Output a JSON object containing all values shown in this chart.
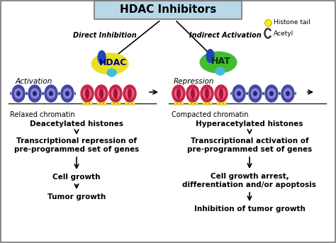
{
  "title": "HDAC Inhibitors",
  "title_box_color": "#b8d8e8",
  "bg_color": "#ffffff",
  "border_color": "#777777",
  "left_label": "Direct Inhibition",
  "right_label": "Indirect Activation",
  "activation_label": "Activation",
  "repression_label": "Repression",
  "relaxed_label": "Relaxed chromatin",
  "compacted_label": "Compacted chromatin",
  "legend_histone": "Histone tail",
  "legend_acetyl": "Acetyl",
  "left_steps": [
    "Deacetylated histones",
    "Transcriptional repression of\npre-programmed set of genes",
    "Cell growth",
    "Tumor growth"
  ],
  "right_steps": [
    "Hyperacetylated histones",
    "Transcriptional activation of\npre-programmed set of genes",
    "Cell growth arrest,\ndifferentiation and/or apoptosis",
    "Inhibition of tumor growth"
  ],
  "hdac_color": "#e8e020",
  "hat_color": "#44bb33",
  "blue_oval_color": "#2244bb",
  "cyan_oval_color": "#44bbdd",
  "purple_nuc_outer": "#4444aa",
  "purple_nuc_inner": "#8888cc",
  "purple_nuc_dark": "#222288",
  "red_nuc_outer": "#cc2244",
  "red_nuc_inner": "#dd6688",
  "red_nuc_stripe": "#aa1133",
  "yellow_dot": "#ffee00",
  "dna_color": "#222222",
  "arm_color": "#333333",
  "arrow_color": "#000000",
  "title_fontsize": 11,
  "label_fontsize": 7,
  "step_fontsize": 7,
  "activation_fontsize": 7.5
}
